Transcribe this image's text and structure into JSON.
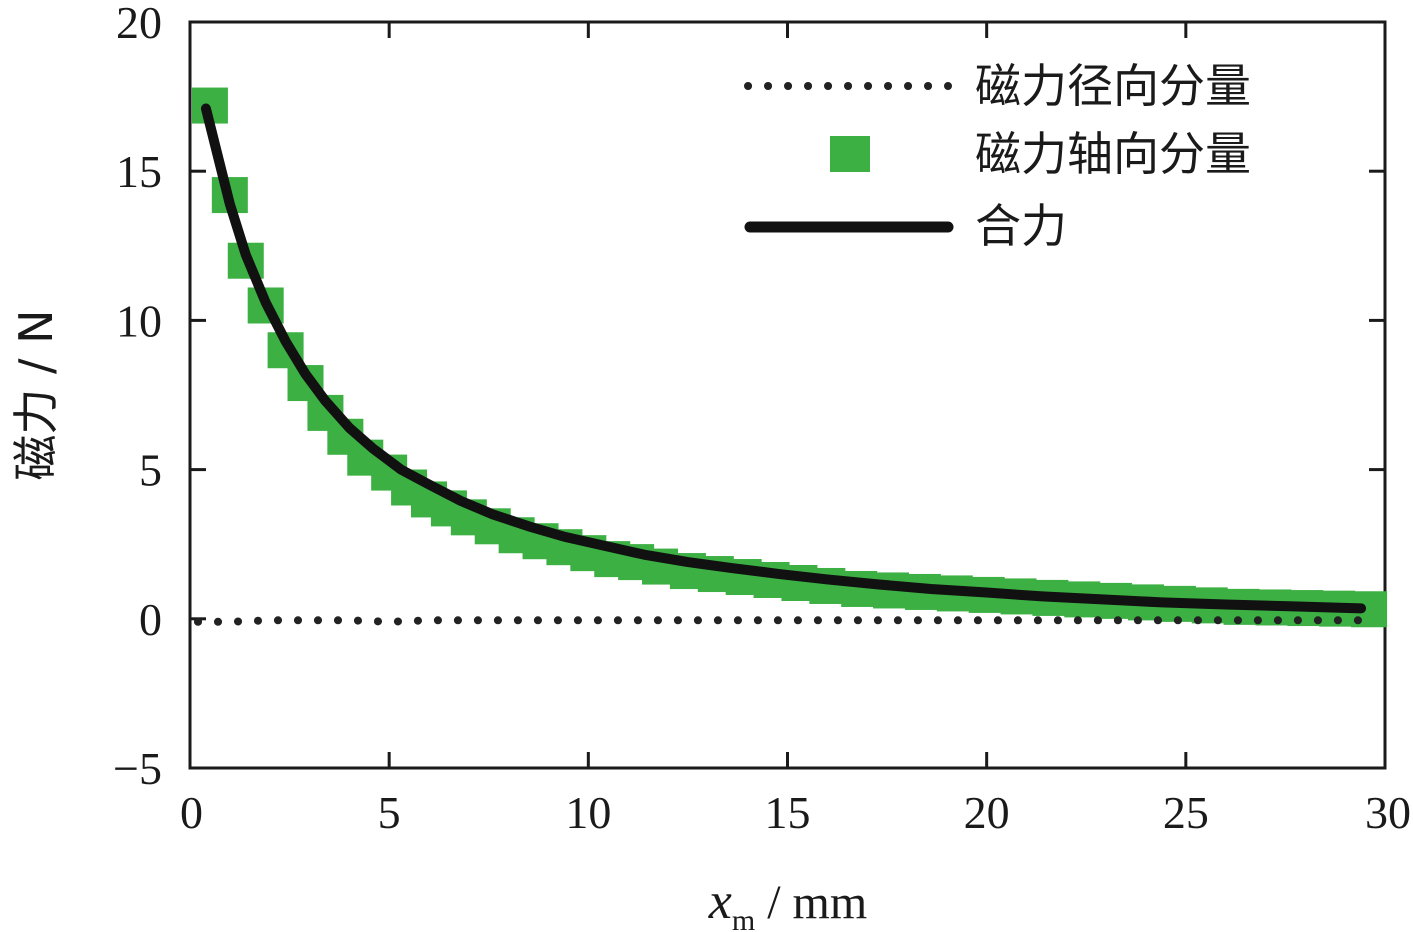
{
  "chart_data": {
    "type": "line",
    "xlabel": {
      "var": "x",
      "sub": "m",
      "unit": " / mm"
    },
    "ylabel": "磁力 / N",
    "xlim": [
      0,
      30
    ],
    "ylim": [
      -5,
      20
    ],
    "xticks": [
      0,
      5,
      10,
      15,
      20,
      25,
      30
    ],
    "yticks": [
      -5,
      0,
      5,
      10,
      15,
      20
    ],
    "xtick_labels": [
      "0",
      "5",
      "10",
      "15",
      "20",
      "25",
      "30"
    ],
    "ytick_labels": [
      "−5",
      "0",
      "5",
      "10",
      "15",
      "20"
    ],
    "grid": false,
    "legend_position": "top-right",
    "colors": {
      "radial": "#222222",
      "axial": "#3cb043",
      "resultant": "#111111",
      "axes": "#1a1a1a"
    },
    "series": [
      {
        "name": "磁力径向分量",
        "style": "dotted",
        "x": [
          0.2,
          1,
          2,
          3,
          4,
          5,
          6,
          7,
          8,
          9,
          10,
          11,
          12,
          13,
          14,
          15,
          16,
          17,
          18,
          19,
          20,
          21,
          22,
          23,
          24,
          25,
          26,
          27,
          28,
          29,
          29.8
        ],
        "y": [
          -0.1,
          -0.1,
          -0.05,
          -0.05,
          -0.05,
          -0.1,
          -0.05,
          -0.05,
          -0.05,
          -0.05,
          -0.05,
          -0.05,
          -0.05,
          -0.05,
          -0.05,
          -0.05,
          -0.05,
          -0.05,
          -0.05,
          -0.05,
          -0.05,
          -0.05,
          -0.05,
          -0.05,
          -0.05,
          -0.05,
          -0.05,
          -0.05,
          -0.05,
          -0.05,
          -0.05
        ]
      },
      {
        "name": "磁力轴向分量",
        "style": "square-markers",
        "x": [
          0.5,
          1.0,
          1.4,
          1.9,
          2.4,
          2.9,
          3.4,
          3.9,
          4.4,
          5.0,
          5.5,
          6.0,
          6.5,
          7.0,
          7.6,
          8.2,
          8.8,
          9.4,
          10.0,
          10.6,
          11.2,
          11.8,
          12.5,
          13.2,
          13.9,
          14.6,
          15.3,
          16.0,
          16.8,
          17.6,
          18.4,
          19.2,
          20.0,
          20.8,
          21.6,
          22.4,
          23.2,
          24.0,
          24.8,
          25.6,
          26.4,
          27.2,
          28.0,
          28.8,
          29.6
        ],
        "y": [
          17.2,
          14.2,
          12.0,
          10.5,
          9.0,
          7.9,
          6.9,
          6.1,
          5.4,
          4.9,
          4.4,
          4.0,
          3.7,
          3.4,
          3.1,
          2.8,
          2.6,
          2.4,
          2.2,
          2.0,
          1.9,
          1.75,
          1.6,
          1.5,
          1.4,
          1.3,
          1.2,
          1.1,
          1.0,
          0.95,
          0.9,
          0.85,
          0.8,
          0.75,
          0.7,
          0.65,
          0.6,
          0.55,
          0.5,
          0.45,
          0.4,
          0.38,
          0.36,
          0.34,
          0.32
        ]
      },
      {
        "name": "合力",
        "style": "thick-line",
        "x": [
          0.4,
          0.7,
          1.0,
          1.4,
          1.9,
          2.4,
          2.9,
          3.4,
          4.0,
          4.6,
          5.3,
          6.0,
          6.8,
          7.6,
          8.5,
          9.4,
          10.4,
          11.4,
          12.5,
          13.6,
          14.8,
          16.0,
          17.3,
          18.6,
          20.0,
          21.4,
          22.9,
          24.4,
          26.0,
          27.6,
          29.4
        ],
        "y": [
          17.1,
          15.5,
          13.9,
          12.2,
          10.6,
          9.3,
          8.2,
          7.3,
          6.4,
          5.7,
          5.0,
          4.5,
          3.95,
          3.5,
          3.1,
          2.75,
          2.45,
          2.15,
          1.9,
          1.7,
          1.5,
          1.32,
          1.15,
          1.0,
          0.88,
          0.75,
          0.65,
          0.55,
          0.48,
          0.42,
          0.35
        ]
      }
    ]
  }
}
